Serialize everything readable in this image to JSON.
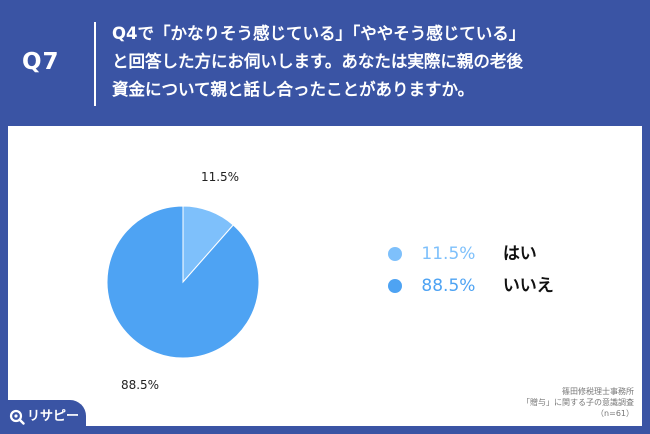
{
  "header": {
    "label": "Q7",
    "question_lines": [
      "Q4で「かなりそう感じている」「ややそう感じている」",
      "と回答した方にお伺いします。あなたは実際に親の老後",
      "資金について親と話し合ったことがありますか。"
    ]
  },
  "chart_data": {
    "type": "pie",
    "categories": [
      "はい",
      "いいえ"
    ],
    "values": [
      11.5,
      88.5
    ],
    "value_labels": [
      "11.5%",
      "88.5%"
    ],
    "colors": [
      "#7ec0fb",
      "#4ea3f3"
    ],
    "legend_position": "right"
  },
  "source": {
    "lines": [
      "篠田修税理士事務所",
      "「贈与」に関する子の意識調査",
      "（n=61）"
    ]
  },
  "brand": {
    "name": "リサピー",
    "logo_icon": "magnifier-icon"
  },
  "colors": {
    "frame": "#3a54a4",
    "panel": "#ffffff"
  }
}
